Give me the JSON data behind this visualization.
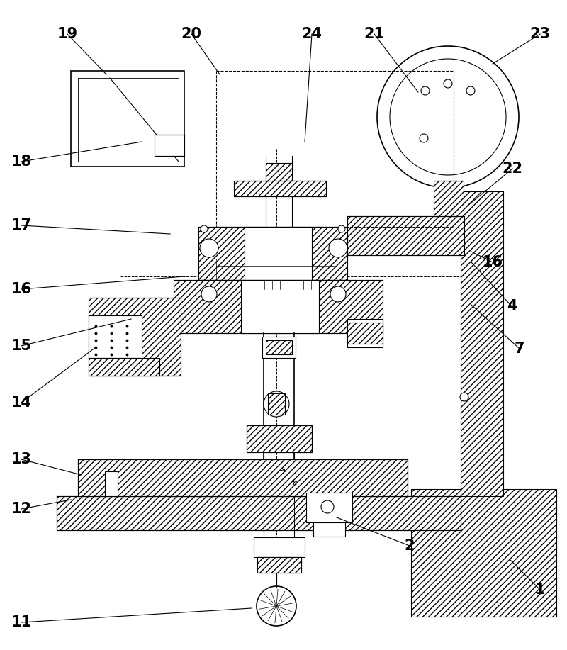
{
  "bg_color": "#ffffff",
  "line_color": "#000000",
  "figsize": [
    8.0,
    9.17
  ],
  "dpi": 100,
  "leaders": [
    [
      "1",
      762,
      832,
      720,
      790
    ],
    [
      "2",
      578,
      770,
      475,
      730
    ],
    [
      "4",
      722,
      432,
      665,
      370
    ],
    [
      "7",
      733,
      492,
      665,
      430
    ],
    [
      "11",
      30,
      878,
      355,
      858
    ],
    [
      "12",
      30,
      718,
      100,
      705
    ],
    [
      "13",
      30,
      648,
      115,
      670
    ],
    [
      "14",
      30,
      568,
      135,
      490
    ],
    [
      "15",
      30,
      488,
      185,
      450
    ],
    [
      "16",
      30,
      408,
      260,
      390
    ],
    [
      "16",
      695,
      370,
      665,
      355
    ],
    [
      "17",
      30,
      318,
      240,
      330
    ],
    [
      "18",
      30,
      228,
      200,
      200
    ],
    [
      "19",
      95,
      48,
      150,
      105
    ],
    [
      "20",
      270,
      48,
      310,
      105
    ],
    [
      "21",
      528,
      48,
      590,
      130
    ],
    [
      "22",
      723,
      238,
      660,
      290
    ],
    [
      "23",
      762,
      48,
      695,
      90
    ],
    [
      "24",
      440,
      48,
      430,
      200
    ]
  ]
}
